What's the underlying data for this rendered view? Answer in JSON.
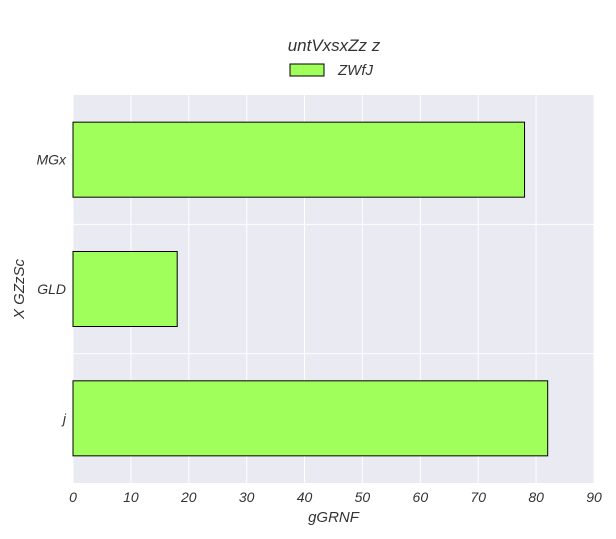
{
  "chart_data": {
    "type": "bar",
    "orientation": "horizontal",
    "title": "untVxsxZz z",
    "xlabel": "gGRNF",
    "ylabel": "X GZzSc",
    "categories": [
      "MGx",
      "GLD",
      "j"
    ],
    "series": [
      {
        "name": "ZWfJ",
        "values": [
          78,
          18,
          82
        ],
        "color": "#a0ff5a"
      }
    ],
    "xlim": [
      0,
      90
    ],
    "xticks": [
      0,
      10,
      20,
      30,
      40,
      50,
      60,
      70,
      80,
      90
    ],
    "grid": true,
    "legend_position": "top-center",
    "plot_background": "#eaeaf2",
    "bar_edge_color": "#000000"
  }
}
